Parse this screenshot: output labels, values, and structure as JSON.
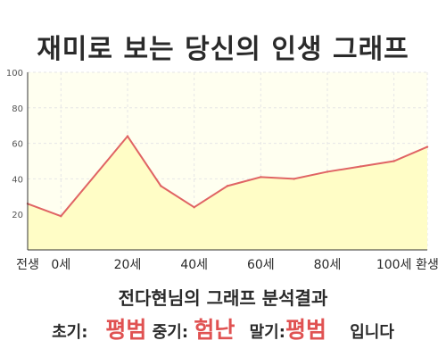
{
  "title": "재미로 보는 당신의 인생 그래프",
  "subtitle": "전다현님의 그래프 분석결과",
  "verdict": {
    "early_label": "초기:",
    "early_value": "평범",
    "mid_label": "중기:",
    "mid_value": "험난",
    "late_label": "말기:",
    "late_value": "평범",
    "suffix": "입니다"
  },
  "colors": {
    "line": "#e06464",
    "fill": "#fffdc6",
    "plot_bg": "#fffff0",
    "grid": "#e6e6e6",
    "accent": "#e05252"
  },
  "chart_data": {
    "type": "area",
    "title": "재미로 보는 당신의 인생 그래프",
    "xlabel": "",
    "ylabel": "",
    "x": [
      -10,
      0,
      20,
      30,
      40,
      50,
      60,
      70,
      80,
      90,
      100,
      110
    ],
    "y": [
      26,
      19,
      64,
      36,
      24,
      36,
      41,
      40,
      44,
      47,
      50,
      58
    ],
    "xlim": [
      -10,
      110
    ],
    "ylim": [
      0,
      100
    ],
    "x_ticks": [
      -10,
      0,
      20,
      40,
      60,
      80,
      100,
      110
    ],
    "x_tick_labels": [
      "전생",
      "0세",
      "20세",
      "40세",
      "60세",
      "80세",
      "100세",
      "환생"
    ],
    "y_ticks": [
      20,
      40,
      60,
      80,
      100
    ],
    "y_tick_labels": [
      "20",
      "40",
      "60",
      "80",
      "100"
    ],
    "grid": true,
    "legend": "none"
  }
}
